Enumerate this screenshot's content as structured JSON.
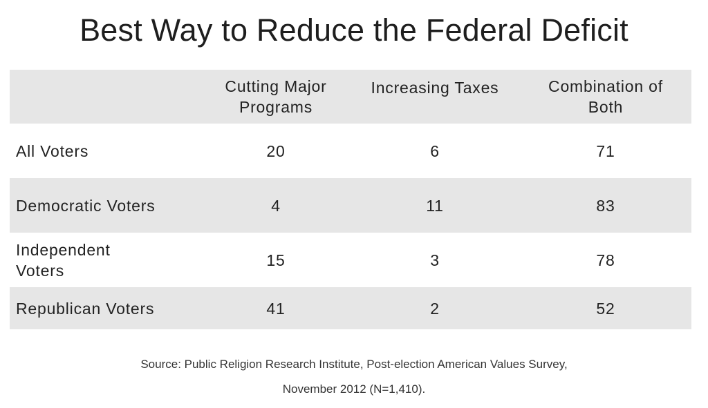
{
  "chart_data": {
    "type": "table",
    "title": "Best Way to Reduce the Federal Deficit",
    "columns": [
      "Cutting Major Programs",
      "Increasing Taxes",
      "Combination of Both"
    ],
    "column_lines": [
      [
        "Cutting Major",
        "Programs"
      ],
      [
        "Increasing Taxes"
      ],
      [
        "Combination of",
        "Both"
      ]
    ],
    "rows": [
      {
        "label_lines": [
          "All Voters"
        ],
        "values": [
          "20",
          "6",
          "71"
        ]
      },
      {
        "label_lines": [
          "Democratic Voters"
        ],
        "values": [
          "4",
          "11",
          "83"
        ]
      },
      {
        "label_lines": [
          "Independent",
          "Voters"
        ],
        "values": [
          "15",
          "3",
          "78"
        ]
      },
      {
        "label_lines": [
          "Republican Voters"
        ],
        "values": [
          "41",
          "2",
          "52"
        ]
      }
    ],
    "source_lines": [
      "Source: Public Religion Research Institute, Post-election American Values Survey,",
      "November 2012 (N=1,410)."
    ]
  },
  "colors": {
    "shaded_row": "#e6e6e6",
    "text": "#222222"
  }
}
